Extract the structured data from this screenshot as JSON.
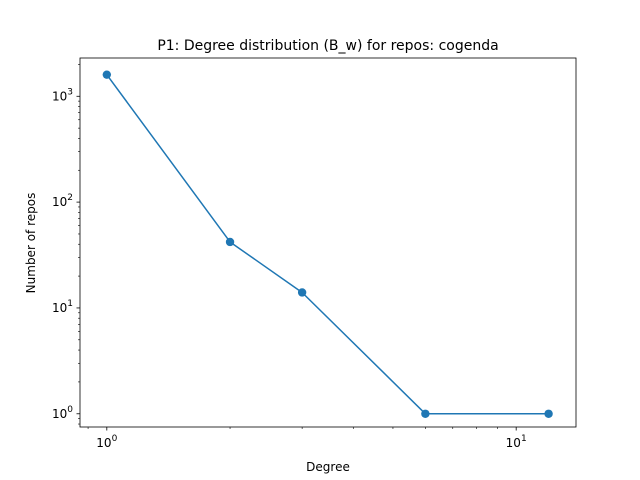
{
  "chart_data": {
    "type": "line",
    "title": "P1: Degree distribution (B_w) for repos: cogenda",
    "xlabel": "Degree",
    "ylabel": "Number of repos",
    "x_scale": "log",
    "y_scale": "log",
    "xlim": [
      0.86,
      14
    ],
    "ylim": [
      0.75,
      2300
    ],
    "grid": false,
    "color": "#1f77b4",
    "marker": "circle",
    "x_major_ticks": [
      1,
      10
    ],
    "y_major_ticks": [
      1,
      10,
      100,
      1000
    ],
    "series": [
      {
        "x": [
          1,
          2,
          3,
          6,
          12
        ],
        "y": [
          1600,
          42,
          14,
          1,
          1
        ]
      }
    ]
  }
}
